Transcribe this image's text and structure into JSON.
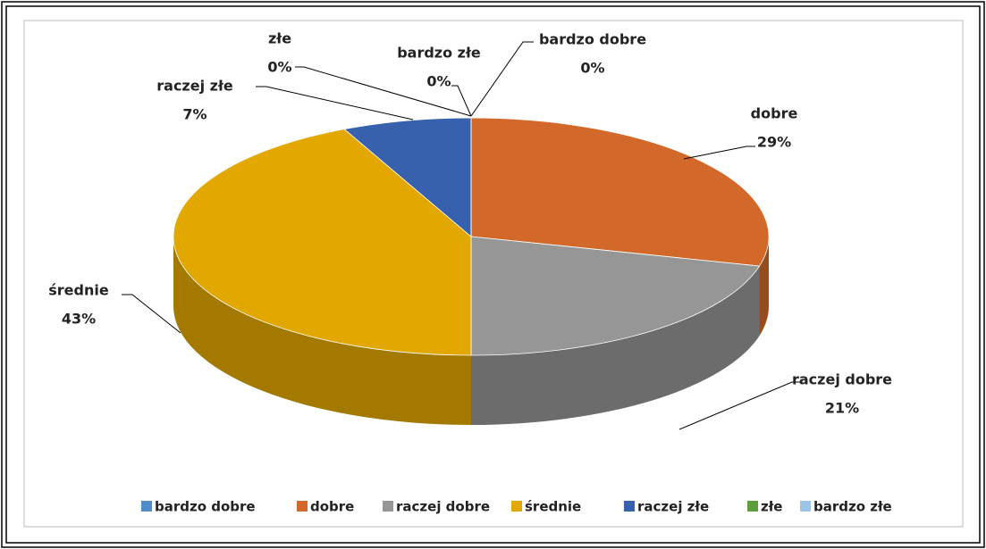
{
  "chart_data": {
    "type": "pie",
    "style": "3d",
    "categories": [
      "bardzo dobre",
      "dobre",
      "raczej dobre",
      "średnie",
      "raczej złe",
      "złe",
      "bardzo złe"
    ],
    "values": [
      0,
      29,
      21,
      43,
      7,
      0,
      0
    ],
    "value_labels": [
      "0%",
      "29%",
      "21%",
      "43%",
      "7%",
      "0%",
      "0%"
    ],
    "colors": [
      "#4f8cc9",
      "#d2692a",
      "#969696",
      "#e3a800",
      "#3760ad",
      "#5e9e3a",
      "#9dc3e6"
    ],
    "legend": "bottom"
  }
}
